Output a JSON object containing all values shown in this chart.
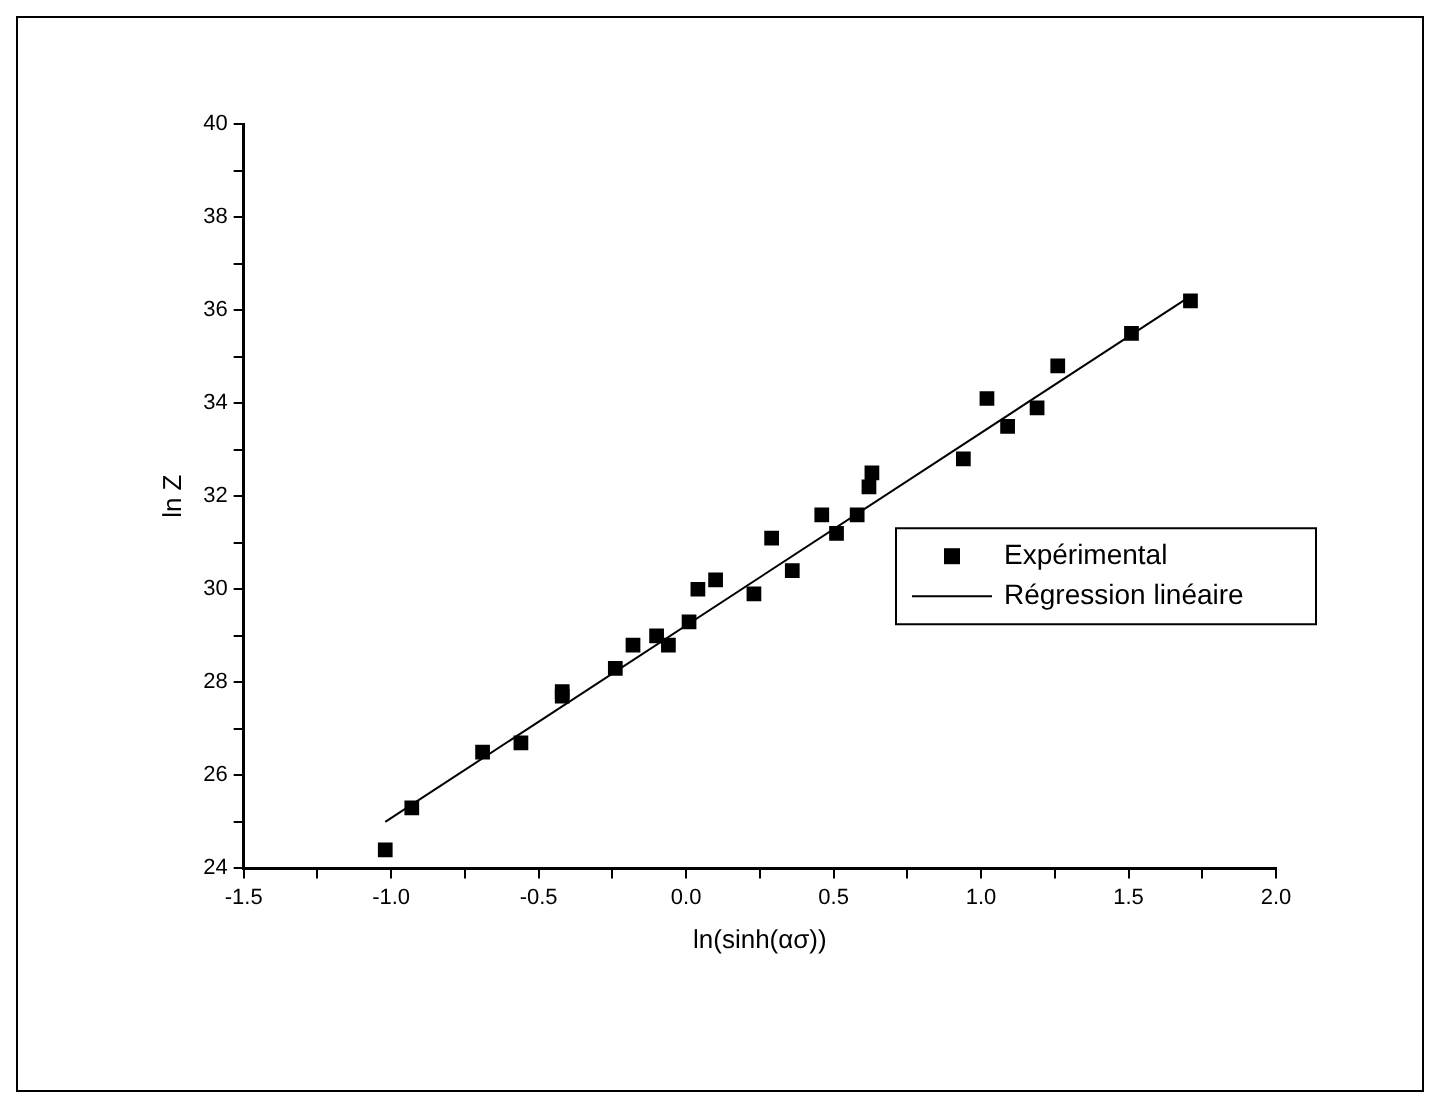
{
  "chart_data": {
    "type": "scatter",
    "xlabel": "ln(sinh(ασ))",
    "ylabel": "ln Z",
    "legend": "right",
    "xlim": [
      -1.5,
      2.0
    ],
    "ylim": [
      24,
      40
    ],
    "xticks": [
      {
        "value": -1.5,
        "label": "-1.5"
      },
      {
        "value": -1,
        "label": "-1.0"
      },
      {
        "value": -0.5,
        "label": "-0.5"
      },
      {
        "value": 0,
        "label": "0.0"
      },
      {
        "value": 0.5,
        "label": "0.5"
      },
      {
        "value": 1,
        "label": "1.0"
      },
      {
        "value": 1.5,
        "label": "1.5"
      },
      {
        "value": 2,
        "label": "2.0"
      }
    ],
    "yticks": [
      24,
      26,
      28,
      30,
      32,
      34,
      36,
      38,
      40
    ],
    "series": [
      {
        "name": "Expérimental",
        "marker": "square",
        "color": "#000000",
        "x": [
          -1.02,
          -0.93,
          -0.69,
          -0.56,
          -0.42,
          -0.42,
          -0.24,
          -0.18,
          -0.1,
          -0.06,
          0.01,
          0.04,
          0.1,
          0.23,
          0.29,
          0.36,
          0.46,
          0.51,
          0.58,
          0.62,
          0.63,
          0.94,
          1.02,
          1.09,
          1.19,
          1.26,
          1.51,
          1.71
        ],
        "values": [
          24.4,
          25.3,
          26.5,
          26.7,
          27.7,
          27.8,
          28.3,
          28.8,
          29.0,
          28.8,
          29.3,
          30.0,
          30.2,
          29.9,
          31.1,
          30.4,
          31.6,
          31.2,
          31.6,
          32.2,
          32.5,
          32.8,
          34.1,
          33.5,
          33.9,
          34.8,
          35.5,
          36.2
        ]
      },
      {
        "name": "Régression linéaire",
        "type": "line",
        "color": "#000000",
        "line_style": "solid",
        "x": [
          -1.02,
          1.71
        ],
        "values": [
          25.0,
          36.3
        ]
      }
    ]
  }
}
